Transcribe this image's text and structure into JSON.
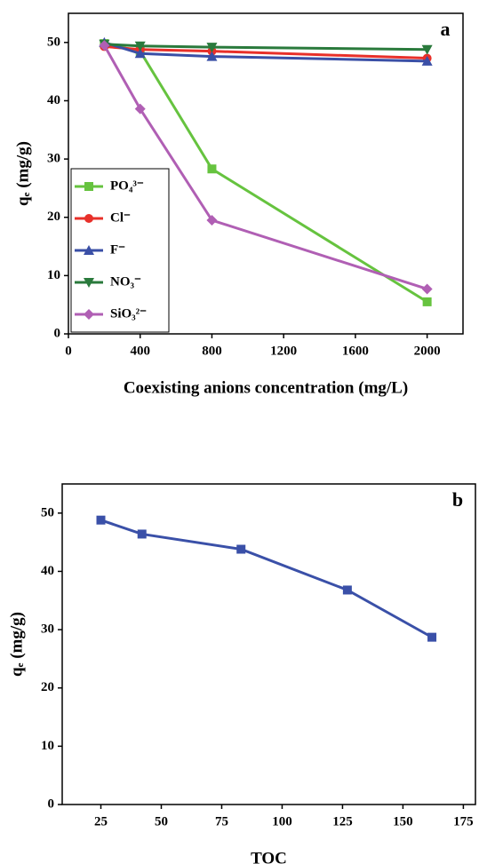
{
  "chart_data": [
    {
      "type": "line",
      "annotation": "a",
      "x_label": "Coexisting anions concentration (mg/L)",
      "y_label": "qₑ (mg/g)",
      "x": [
        200,
        400,
        800,
        2000
      ],
      "series": [
        {
          "name": "PO₄³⁻",
          "color": "#66c33f",
          "marker": "square",
          "values": [
            49.8,
            48.5,
            28.3,
            5.5
          ]
        },
        {
          "name": "Cl⁻",
          "color": "#e8302a",
          "marker": "circle",
          "values": [
            49.3,
            48.8,
            48.5,
            47.3
          ]
        },
        {
          "name": "F⁻",
          "color": "#3a4fa6",
          "marker": "triangle-up",
          "values": [
            50,
            48.1,
            47.6,
            46.8
          ]
        },
        {
          "name": "NO₃⁻",
          "color": "#2a7a3c",
          "marker": "triangle-down",
          "values": [
            49.7,
            49.4,
            49.2,
            48.8
          ]
        },
        {
          "name": "SiO₃²⁻",
          "color": "#b05fb4",
          "marker": "diamond",
          "values": [
            49.5,
            38.6,
            19.5,
            7.7
          ]
        }
      ],
      "xlim": [
        0,
        2200
      ],
      "xticks": [
        0,
        400,
        800,
        1200,
        1600,
        2000
      ],
      "ylim": [
        0,
        55
      ],
      "yticks": [
        0,
        10,
        20,
        30,
        40,
        50
      ],
      "legend": "lower-left"
    },
    {
      "type": "line",
      "annotation": "b",
      "x_label": "TOC",
      "y_label": "qₑ (mg/g)",
      "x": [
        25,
        42,
        83,
        127,
        162
      ],
      "series": [
        {
          "color": "#3a50a8",
          "marker": "square",
          "values": [
            48.8,
            46.4,
            43.8,
            36.8,
            28.7
          ]
        }
      ],
      "xlim": [
        9,
        180
      ],
      "xticks": [
        25,
        50,
        75,
        100,
        125,
        150,
        175
      ],
      "ylim": [
        0,
        55
      ],
      "yticks": [
        0,
        10,
        20,
        30,
        40,
        50
      ]
    }
  ]
}
